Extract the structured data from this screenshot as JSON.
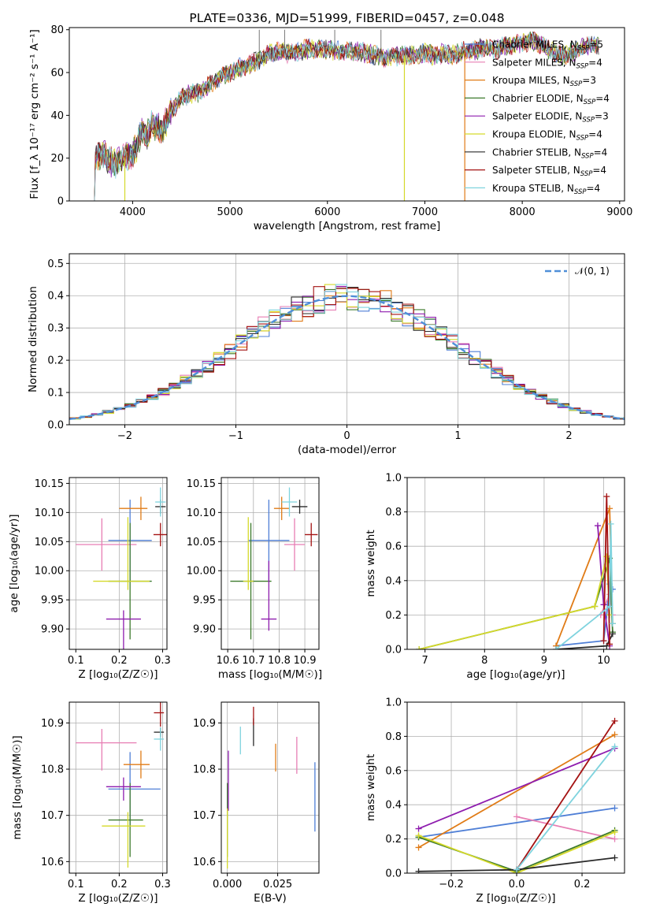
{
  "series_colors": [
    "#4f7fd6",
    "#e77eb4",
    "#e07b16",
    "#3d7a2c",
    "#8e1cae",
    "#d5d92a",
    "#2a2a2a",
    "#a41212",
    "#7fd3de"
  ],
  "chart_data": [
    {
      "id": "spectrum",
      "type": "line",
      "title": "PLATE=0336, MJD=51999, FIBERID=0457, z=0.048",
      "xlabel": "wavelength [Angstrom, rest frame]",
      "ylabel": "Flux [f_λ 10⁻¹⁷ erg cm⁻² s⁻¹ A⁻¹]",
      "xlim": [
        3350,
        9050
      ],
      "ylim": [
        0,
        81
      ],
      "xticks": [
        4000,
        5000,
        6000,
        7000,
        8000,
        9000
      ],
      "yticks": [
        0,
        20,
        40,
        60,
        80
      ],
      "grid": false,
      "legend_position": "top-right",
      "legend": [
        "Chabrier MILES, N_SSP=5",
        "Salpeter MILES, N_SSP=4",
        "Kroupa MILES, N_SSP=3",
        "Chabrier ELODIE, N_SSP=4",
        "Salpeter ELODIE, N_SSP=3",
        "Kroupa ELODIE, N_SSP=4",
        "Chabrier STELIB, N_SSP=4",
        "Salpeter STELIB, N_SSP=4",
        "Kroupa STELIB, N_SSP=4"
      ],
      "continuum": {
        "x": [
          3600,
          3620,
          3700,
          3800,
          3900,
          4000,
          4050,
          4100,
          4150,
          4200,
          4300,
          4400,
          4500,
          4600,
          4700,
          4800,
          4900,
          5000,
          5100,
          5200,
          5300,
          5400,
          5500,
          5600,
          5700,
          5800,
          5900,
          6000,
          6100,
          6200,
          6300,
          6400,
          6500,
          6600,
          6700,
          6800,
          6900,
          7000,
          7100,
          7200,
          7300,
          7400,
          7500,
          7600,
          7700,
          7800,
          7900,
          8000,
          8100,
          8200,
          8300,
          8400,
          8500,
          8600,
          8700,
          8800
        ],
        "y": [
          0,
          20,
          22,
          17,
          20,
          22,
          26,
          34,
          31,
          36,
          33,
          42,
          48,
          50,
          51,
          55,
          58,
          60,
          62,
          64,
          66,
          69,
          70,
          69,
          70,
          71,
          71,
          71,
          70,
          70,
          70,
          69,
          68,
          67,
          68,
          68,
          68,
          69,
          68,
          69,
          68,
          70,
          70,
          72,
          70,
          72,
          73,
          74,
          75,
          73,
          70,
          68,
          69,
          71,
          73,
          73
        ]
      },
      "spikes": [
        {
          "x": 5300,
          "y": 80
        },
        {
          "x": 5560,
          "y": 80
        },
        {
          "x": 6075,
          "y": 80
        },
        {
          "x": 6550,
          "y": 80
        }
      ],
      "drops": [
        {
          "x": 3920,
          "color_index": 5
        },
        {
          "x": 6790,
          "color_index": 5
        },
        {
          "x": 7410,
          "color_index": 2
        }
      ]
    },
    {
      "id": "residual-histogram",
      "type": "histogram",
      "xlabel": "(data-model)/error",
      "ylabel": "Normed distribution",
      "xlim": [
        -2.5,
        2.5
      ],
      "ylim": [
        0,
        0.53
      ],
      "xticks": [
        -2,
        -1,
        0,
        1,
        2
      ],
      "yticks": [
        0.0,
        0.1,
        0.2,
        0.3,
        0.4,
        0.5
      ],
      "grid": true,
      "legend_position": "top-right",
      "normal_curve": {
        "label": "𝒩(0, 1)",
        "mean": 0,
        "sigma": 1,
        "color": "#4f8fd8"
      },
      "bin_edges": [
        -2.5,
        -2.4,
        -2.3,
        -2.2,
        -2.1,
        -2.0,
        -1.9,
        -1.8,
        -1.7,
        -1.6,
        -1.5,
        -1.4,
        -1.3,
        -1.2,
        -1.1,
        -1.0,
        -0.9,
        -0.8,
        -0.7,
        -0.6,
        -0.5,
        -0.4,
        -0.3,
        -0.2,
        -0.1,
        0.0,
        0.1,
        0.2,
        0.3,
        0.4,
        0.5,
        0.6,
        0.7,
        0.8,
        0.9,
        1.0,
        1.1,
        1.2,
        1.3,
        1.4,
        1.5,
        1.6,
        1.7,
        1.8,
        1.9,
        2.0,
        2.1,
        2.2,
        2.3,
        2.4,
        2.5
      ]
    },
    {
      "id": "age-vs-Z",
      "type": "errorbar",
      "xlabel": "Z [log₁₀(Z/Z☉)]",
      "ylabel": "age  [log₁₀(age/yr)]",
      "xlim": [
        0.085,
        0.31
      ],
      "ylim": [
        9.865,
        10.16
      ],
      "xticks": [
        0.1,
        0.2,
        0.3
      ],
      "yticks": [
        9.9,
        9.95,
        10.0,
        10.05,
        10.1,
        10.15
      ],
      "grid": true,
      "points": [
        {
          "c": 0,
          "x": 0.225,
          "y": 10.052,
          "xe": [
            0.05,
            0.05
          ],
          "ye": [
            0.07,
            0.07
          ]
        },
        {
          "c": 1,
          "x": 0.16,
          "y": 10.045,
          "xe": [
            0.06,
            0.08
          ],
          "ye": [
            0.045,
            0.045
          ]
        },
        {
          "c": 2,
          "x": 0.25,
          "y": 10.107,
          "xe": [
            0.05,
            0.015
          ],
          "ye": [
            0.02,
            0.02
          ]
        },
        {
          "c": 3,
          "x": 0.225,
          "y": 9.982,
          "xe": [
            0.05,
            0.05
          ],
          "ye": [
            0.1,
            0.1
          ]
        },
        {
          "c": 4,
          "x": 0.21,
          "y": 9.917,
          "xe": [
            0.04,
            0.04
          ],
          "ye": [
            0.095,
            0.015
          ]
        },
        {
          "c": 5,
          "x": 0.22,
          "y": 9.982,
          "xe": [
            0.08,
            0.05
          ],
          "ye": [
            0.015,
            0.11
          ]
        },
        {
          "c": 6,
          "x": 0.295,
          "y": 10.11,
          "xe": [
            0.012,
            0.012
          ],
          "ye": [
            0.012,
            0.012
          ]
        },
        {
          "c": 7,
          "x": 0.295,
          "y": 10.062,
          "xe": [
            0.016,
            0.016
          ],
          "ye": [
            0.02,
            0.02
          ]
        },
        {
          "c": 8,
          "x": 0.295,
          "y": 10.118,
          "xe": [
            0.012,
            0.012
          ],
          "ye": [
            0.025,
            0.025
          ]
        }
      ]
    },
    {
      "id": "age-vs-mass",
      "type": "errorbar",
      "xlabel": "mass [log₁₀(M/M☉)]",
      "ylabel": "",
      "xlim": [
        10.575,
        10.955
      ],
      "ylim": [
        9.865,
        10.16
      ],
      "xticks": [
        10.6,
        10.7,
        10.8,
        10.9
      ],
      "yticks": [
        9.9,
        9.95,
        10.0,
        10.05,
        10.1,
        10.15
      ],
      "grid": true,
      "points": [
        {
          "c": 0,
          "x": 10.76,
          "y": 10.052,
          "xe": [
            0.08,
            0.08
          ],
          "ye": [
            0.07,
            0.07
          ]
        },
        {
          "c": 1,
          "x": 10.86,
          "y": 10.045,
          "xe": [
            0.04,
            0.04
          ],
          "ye": [
            0.045,
            0.045
          ]
        },
        {
          "c": 2,
          "x": 10.81,
          "y": 10.107,
          "xe": [
            0.03,
            0.03
          ],
          "ye": [
            0.02,
            0.02
          ]
        },
        {
          "c": 3,
          "x": 10.69,
          "y": 9.982,
          "xe": [
            0.08,
            0.08
          ],
          "ye": [
            0.1,
            0.1
          ]
        },
        {
          "c": 4,
          "x": 10.76,
          "y": 9.917,
          "xe": [
            0.03,
            0.03
          ],
          "ye": [
            0.02,
            0.1
          ]
        },
        {
          "c": 5,
          "x": 10.68,
          "y": 9.982,
          "xe": [
            0.02,
            0.02
          ],
          "ye": [
            0.015,
            0.11
          ]
        },
        {
          "c": 6,
          "x": 10.88,
          "y": 10.11,
          "xe": [
            0.03,
            0.03
          ],
          "ye": [
            0.012,
            0.012
          ]
        },
        {
          "c": 7,
          "x": 10.925,
          "y": 10.062,
          "xe": [
            0.025,
            0.025
          ],
          "ye": [
            0.02,
            0.02
          ]
        },
        {
          "c": 8,
          "x": 10.84,
          "y": 10.118,
          "xe": [
            0.03,
            0.03
          ],
          "ye": [
            0.025,
            0.025
          ]
        }
      ]
    },
    {
      "id": "mass-weight-vs-age",
      "type": "line",
      "xlabel": "age  [log₁₀(age/yr)]",
      "ylabel": "mass weight",
      "xlim": [
        6.7,
        10.35
      ],
      "ylim": [
        0,
        1
      ],
      "xticks": [
        7,
        8,
        9,
        10
      ],
      "yticks": [
        0.0,
        0.2,
        0.4,
        0.6,
        0.8,
        1.0
      ],
      "grid": true,
      "series": [
        {
          "c": 0,
          "x": [
            9.2,
            10.0,
            10.05,
            10.1,
            10.15
          ],
          "y": [
            0.02,
            0.05,
            0.2,
            0.38,
            0.35
          ]
        },
        {
          "c": 1,
          "x": [
            9.95,
            10.1,
            10.15
          ],
          "y": [
            0.2,
            0.32,
            0.2
          ]
        },
        {
          "c": 2,
          "x": [
            9.2,
            10.1,
            10.15
          ],
          "y": [
            0.02,
            0.82,
            0.15
          ]
        },
        {
          "c": 3,
          "x": [
            6.9,
            9.85,
            10.1,
            10.15
          ],
          "y": [
            0.0,
            0.25,
            0.53,
            0.1
          ]
        },
        {
          "c": 4,
          "x": [
            9.9,
            10.0,
            10.1
          ],
          "y": [
            0.72,
            0.26,
            0.02
          ]
        },
        {
          "c": 5,
          "x": [
            6.9,
            9.85,
            10.05,
            10.1
          ],
          "y": [
            0.0,
            0.25,
            0.54,
            0.2
          ]
        },
        {
          "c": 6,
          "x": [
            9.2,
            10.05,
            10.15
          ],
          "y": [
            0.0,
            0.02,
            0.09
          ]
        },
        {
          "c": 7,
          "x": [
            10.0,
            10.05,
            10.1
          ],
          "y": [
            0.05,
            0.89,
            0.03
          ]
        },
        {
          "c": 8,
          "x": [
            9.2,
            10.1,
            10.12,
            10.15
          ],
          "y": [
            0.0,
            0.25,
            0.73,
            0.15
          ]
        }
      ]
    },
    {
      "id": "mass-vs-Z",
      "type": "errorbar",
      "xlabel": "Z [log₁₀(Z/Z☉)]",
      "ylabel": "mass [log₁₀(M/M☉)]",
      "xlim": [
        0.085,
        0.31
      ],
      "ylim": [
        10.575,
        10.945
      ],
      "xticks": [
        0.1,
        0.2,
        0.3
      ],
      "yticks": [
        10.6,
        10.7,
        10.8,
        10.9
      ],
      "grid": true,
      "points": [
        {
          "c": 0,
          "x": 0.225,
          "y": 10.757,
          "xe": [
            0.05,
            0.07
          ],
          "ye": [
            0.08,
            0.08
          ]
        },
        {
          "c": 1,
          "x": 0.16,
          "y": 10.857,
          "xe": [
            0.06,
            0.08
          ],
          "ye": [
            0.06,
            0.03
          ]
        },
        {
          "c": 2,
          "x": 0.25,
          "y": 10.81,
          "xe": [
            0.04,
            0.02
          ],
          "ye": [
            0.03,
            0.03
          ]
        },
        {
          "c": 3,
          "x": 0.225,
          "y": 10.69,
          "xe": [
            0.05,
            0.03
          ],
          "ye": [
            0.08,
            0.08
          ]
        },
        {
          "c": 4,
          "x": 0.21,
          "y": 10.762,
          "xe": [
            0.04,
            0.04
          ],
          "ye": [
            0.03,
            0.02
          ]
        },
        {
          "c": 5,
          "x": 0.22,
          "y": 10.677,
          "xe": [
            0.06,
            0.04
          ],
          "ye": [
            0.09,
            0.03
          ]
        },
        {
          "c": 6,
          "x": 0.295,
          "y": 10.88,
          "xe": [
            0.015,
            0.008
          ],
          "ye": [
            0.01,
            0.01
          ]
        },
        {
          "c": 7,
          "x": 0.295,
          "y": 10.922,
          "xe": [
            0.015,
            0.008
          ],
          "ye": [
            0.03,
            0.03
          ]
        },
        {
          "c": 8,
          "x": 0.295,
          "y": 10.865,
          "xe": [
            0.015,
            0.008
          ],
          "ye": [
            0.025,
            0.025
          ]
        }
      ]
    },
    {
      "id": "mass-vs-ebv",
      "type": "errorbar",
      "xlabel": "E(B-V)",
      "ylabel": "",
      "xlim": [
        -0.003,
        0.0455
      ],
      "ylim": [
        10.575,
        10.945
      ],
      "xticks": [
        0.0,
        0.025
      ],
      "xticklabels": [
        "0.000",
        "0.025"
      ],
      "yticks": [
        10.6,
        10.7,
        10.8,
        10.9
      ],
      "grid": true,
      "points": [
        {
          "c": 0,
          "x": 0.0435,
          "y": 10.74,
          "xe": [
            0,
            0
          ],
          "ye": [
            0.075,
            0.075
          ]
        },
        {
          "c": 1,
          "x": 0.0345,
          "y": 10.83,
          "xe": [
            0,
            0
          ],
          "ye": [
            0.04,
            0.04
          ]
        },
        {
          "c": 2,
          "x": 0.024,
          "y": 10.825,
          "xe": [
            0,
            0
          ],
          "ye": [
            0.03,
            0.03
          ]
        },
        {
          "c": 3,
          "x": 0.0,
          "y": 10.69,
          "xe": [
            0,
            0
          ],
          "ye": [
            0.08,
            0.08
          ]
        },
        {
          "c": 4,
          "x": 0.0005,
          "y": 10.775,
          "xe": [
            0,
            0
          ],
          "ye": [
            0.065,
            0.065
          ]
        },
        {
          "c": 5,
          "x": 0.0,
          "y": 10.65,
          "xe": [
            0,
            0
          ],
          "ye": [
            0.065,
            0.065
          ]
        },
        {
          "c": 6,
          "x": 0.013,
          "y": 10.88,
          "xe": [
            0,
            0
          ],
          "ye": [
            0.03,
            0.03
          ]
        },
        {
          "c": 7,
          "x": 0.013,
          "y": 10.915,
          "xe": [
            0,
            0
          ],
          "ye": [
            0.02,
            0.02
          ]
        },
        {
          "c": 8,
          "x": 0.0065,
          "y": 10.862,
          "xe": [
            0,
            0
          ],
          "ye": [
            0.03,
            0.03
          ]
        }
      ]
    },
    {
      "id": "mass-weight-vs-Z",
      "type": "line",
      "xlabel": "Z [log₁₀(Z/Z☉)]",
      "ylabel": "mass weight",
      "xlim": [
        -0.335,
        0.33
      ],
      "ylim": [
        0,
        1
      ],
      "xticks": [
        -0.2,
        0.0,
        0.2
      ],
      "xticklabels": [
        "−0.2",
        "0.0",
        "0.2"
      ],
      "yticks": [
        0.0,
        0.2,
        0.4,
        0.6,
        0.8,
        1.0
      ],
      "grid": true,
      "series": [
        {
          "c": 0,
          "x": [
            -0.3,
            0.3
          ],
          "y": [
            0.21,
            0.38
          ]
        },
        {
          "c": 1,
          "x": [
            0.0,
            0.3
          ],
          "y": [
            0.33,
            0.2
          ]
        },
        {
          "c": 2,
          "x": [
            -0.3,
            0.3
          ],
          "y": [
            0.15,
            0.81
          ]
        },
        {
          "c": 3,
          "x": [
            -0.3,
            0.0,
            0.3
          ],
          "y": [
            0.21,
            0.01,
            0.25
          ]
        },
        {
          "c": 4,
          "x": [
            -0.3,
            0.3
          ],
          "y": [
            0.26,
            0.73
          ]
        },
        {
          "c": 5,
          "x": [
            -0.3,
            0.0,
            0.3
          ],
          "y": [
            0.22,
            0.0,
            0.24
          ]
        },
        {
          "c": 6,
          "x": [
            -0.3,
            0.0,
            0.3
          ],
          "y": [
            0.01,
            0.02,
            0.09
          ]
        },
        {
          "c": 7,
          "x": [
            0.0,
            0.3
          ],
          "y": [
            0.02,
            0.89
          ]
        },
        {
          "c": 8,
          "x": [
            0.0,
            0.3
          ],
          "y": [
            0.02,
            0.74
          ]
        }
      ]
    }
  ]
}
